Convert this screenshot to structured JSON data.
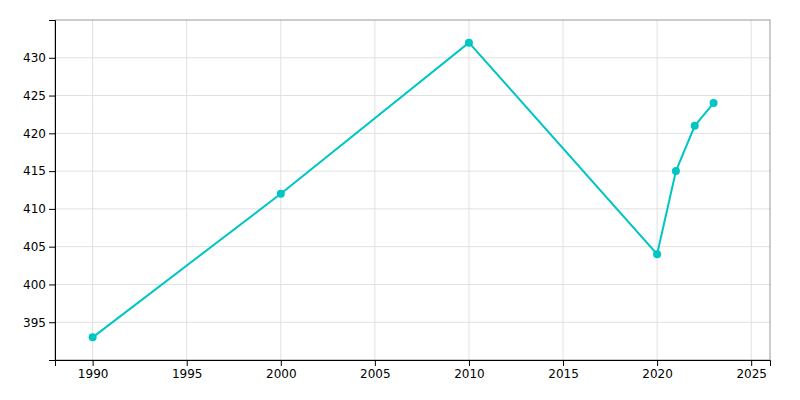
{
  "chart_data": {
    "type": "line",
    "x": [
      1990,
      2000,
      2010,
      2020,
      2021,
      2022,
      2023
    ],
    "values": [
      393,
      412,
      432,
      404,
      415,
      421,
      424
    ],
    "color": "#00C5C5",
    "marker": "circle",
    "xlim": [
      1988,
      2026
    ],
    "ylim": [
      390,
      435
    ],
    "xticks": [
      1990,
      1995,
      2000,
      2005,
      2010,
      2015,
      2020,
      2025
    ],
    "yticks": [
      395,
      400,
      405,
      410,
      415,
      420,
      425,
      430
    ],
    "grid": true
  }
}
